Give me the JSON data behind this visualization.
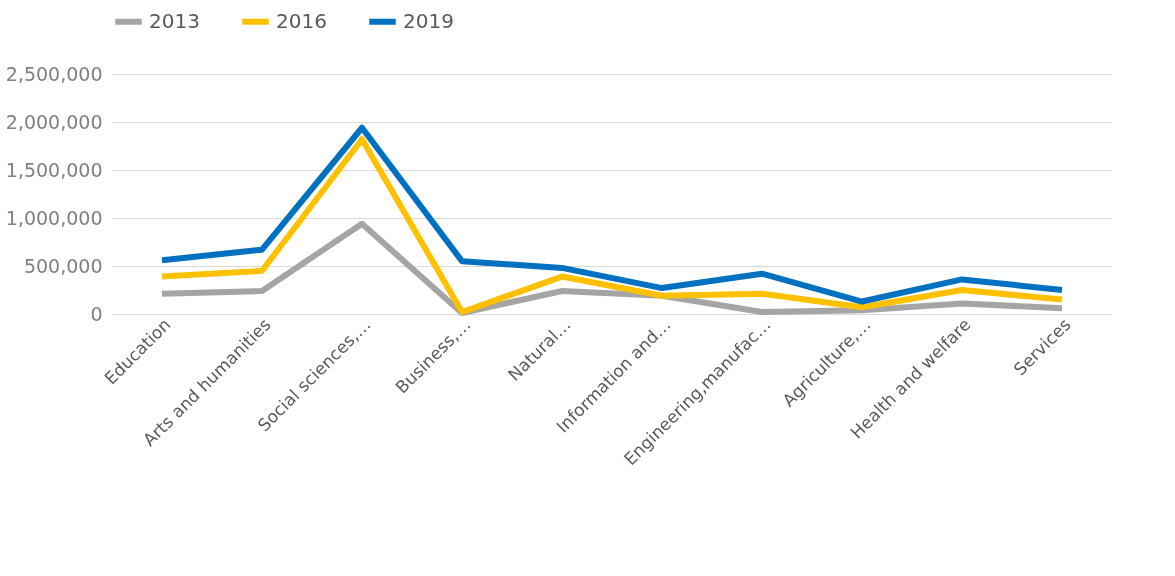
{
  "chart_data": {
    "type": "line",
    "categories": [
      "Education",
      "Arts and humanities",
      "Social sciences,…",
      "Business,…",
      "Natural…",
      "Information and…",
      "Engineering,manufac…",
      "Agriculture,…",
      "Health and welfare",
      "Services"
    ],
    "series": [
      {
        "name": "2013",
        "color": "#a5a5a5",
        "values": [
          210000,
          240000,
          940000,
          10000,
          240000,
          190000,
          20000,
          40000,
          110000,
          60000
        ]
      },
      {
        "name": "2016",
        "color": "#ffc000",
        "values": [
          390000,
          450000,
          1820000,
          20000,
          390000,
          190000,
          210000,
          70000,
          250000,
          150000
        ]
      },
      {
        "name": "2019",
        "color": "#0070c0",
        "values": [
          560000,
          670000,
          1940000,
          550000,
          480000,
          270000,
          420000,
          130000,
          360000,
          250000
        ]
      }
    ],
    "ylim": [
      0,
      2500000
    ],
    "yticks": [
      0,
      {
        "value": 500000,
        "label": "500,000"
      },
      {
        "value": 1000000,
        "label": "1,000,000"
      },
      {
        "value": 1500000,
        "label": "1,500,000"
      },
      {
        "value": 2000000,
        "label": "2,000,000"
      },
      {
        "value": 2500000,
        "label": "2,500,000"
      }
    ],
    "grid": "y",
    "legend": "top",
    "marker": "none",
    "line_style": "solid"
  }
}
